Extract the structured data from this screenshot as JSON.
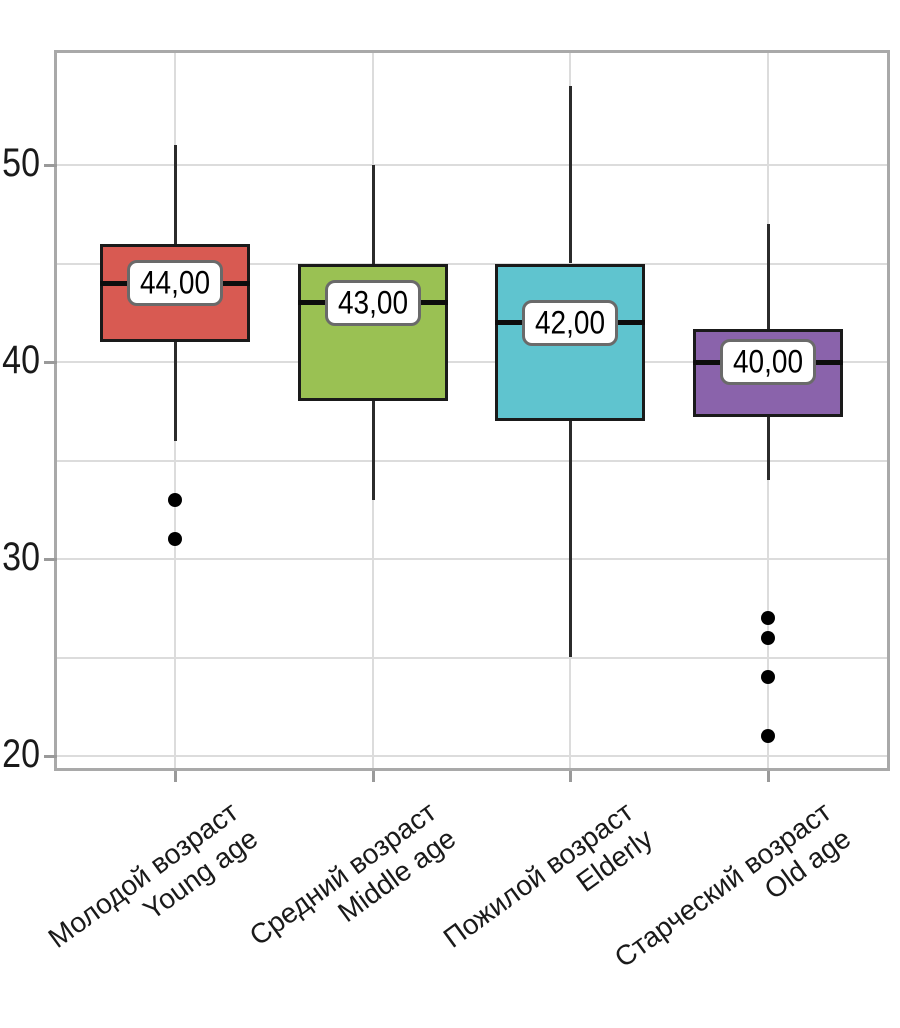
{
  "chart_data": {
    "type": "boxplot",
    "title": "",
    "orientation": "vertical",
    "decimal_separator": ",",
    "y_axis": {
      "tick_labels": [
        "50",
        "40",
        "30",
        "20"
      ],
      "tick_values": [
        50,
        40,
        30,
        20
      ],
      "gridline_values": [
        20,
        25,
        30,
        35,
        40,
        45,
        50
      ],
      "approx_range": [
        19.4,
        55.7
      ],
      "grid": "on"
    },
    "groups": [
      {
        "label_ru": "Молодой возраст",
        "label_en": "Young age",
        "box_color": "#d85a52",
        "median": 44,
        "median_label": "44,00",
        "q1": 41,
        "q3": 46,
        "whisker_low": 36,
        "whisker_high": 51,
        "outliers": [
          33,
          31
        ]
      },
      {
        "label_ru": "Средний возраст",
        "label_en": "Middle age",
        "box_color": "#9ac153",
        "median": 43,
        "median_label": "43,00",
        "q1": 38,
        "q3": 45,
        "whisker_low": 33,
        "whisker_high": 50,
        "outliers": []
      },
      {
        "label_ru": "Пожилой возраст",
        "label_en": "Elderly",
        "box_color": "#5fc4cf",
        "median": 42,
        "median_label": "42,00",
        "q1": 37,
        "q3": 45,
        "whisker_low": 25,
        "whisker_high": 54,
        "outliers": []
      },
      {
        "label_ru": "Старческий возраст",
        "label_en": "Old age",
        "box_color": "#8a63ab",
        "median": 40,
        "median_label": "40,00",
        "q1": 37.2,
        "q3": 41.7,
        "whisker_low": 34,
        "whisker_high": 47,
        "outliers": [
          27,
          26,
          24,
          21
        ]
      }
    ],
    "style_colors": {
      "box_border": "#1a1a1a",
      "median_line": "#0d0d0d",
      "whisker": "#2b2b2b",
      "outlier": "#000000",
      "gridline": "#dcdcdc",
      "frame": "#a9a9a9",
      "tick": "#9a9a9a",
      "text": "#1a1a1a",
      "callout_fill": "#ffffff",
      "callout_border": "#6a6a6a",
      "background": "#ffffff"
    }
  }
}
